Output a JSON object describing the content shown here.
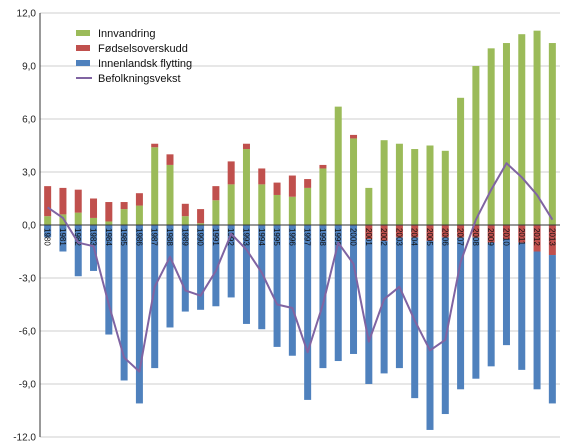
{
  "chart_data": {
    "type": "bar",
    "stacked": true,
    "ylim": [
      -12,
      12
    ],
    "yticks": [
      "12,0",
      "9,0",
      "6,0",
      "3,0",
      "0,0",
      "-3,0",
      "-6,0",
      "-9,0",
      "-12,0"
    ],
    "ytick_values": [
      12,
      9,
      6,
      3,
      0,
      -3,
      -6,
      -9,
      -12
    ],
    "grid": true,
    "legend_position": "top-left",
    "categories": [
      "1980",
      "1981",
      "1982",
      "1983",
      "1984",
      "1985",
      "1986",
      "1987",
      "1988",
      "1989",
      "1990",
      "1991",
      "1992",
      "1993",
      "1994",
      "1995",
      "1996",
      "1997",
      "1998",
      "1999",
      "2000",
      "2001",
      "2002",
      "2003",
      "2004",
      "2005",
      "2006",
      "2007",
      "2008",
      "2009",
      "2010",
      "2011",
      "2012",
      "2013"
    ],
    "series": [
      {
        "name": "Innvandring",
        "kind": "bar",
        "color": "#9bbb59",
        "values": [
          0.5,
          0.6,
          0.7,
          0.4,
          0.2,
          0.9,
          1.1,
          4.4,
          3.4,
          0.5,
          0.1,
          1.4,
          2.3,
          4.3,
          2.3,
          1.7,
          1.6,
          2.1,
          3.2,
          6.7,
          4.9,
          2.1,
          4.8,
          4.6,
          4.3,
          4.5,
          4.2,
          7.2,
          9.0,
          10.0,
          10.3,
          10.8,
          11.0,
          10.3
        ]
      },
      {
        "name": "Fødselsoverskudd",
        "kind": "bar",
        "color": "#c0504d",
        "values": [
          1.7,
          1.5,
          1.3,
          1.1,
          1.1,
          0.4,
          0.7,
          0.2,
          0.6,
          0.7,
          0.8,
          0.8,
          1.3,
          0.3,
          0.9,
          0.7,
          1.2,
          0.5,
          0.2,
          0.0,
          0.2,
          -0.8,
          -0.9,
          -0.7,
          -0.7,
          -0.9,
          -0.7,
          -0.7,
          -0.7,
          -1.0,
          -0.8,
          -1.0,
          -1.5,
          -1.7
        ]
      },
      {
        "name": "Innenlandsk flytting",
        "kind": "bar",
        "color": "#4f81bd",
        "values": [
          -0.7,
          -1.5,
          -2.9,
          -2.6,
          -6.2,
          -8.8,
          -10.1,
          -8.1,
          -5.8,
          -4.9,
          -4.8,
          -4.6,
          -4.1,
          -5.6,
          -5.9,
          -6.9,
          -7.4,
          -9.9,
          -8.1,
          -7.7,
          -7.3,
          -8.2,
          -7.5,
          -7.4,
          -9.1,
          -10.7,
          -10.0,
          -8.6,
          -8.0,
          -7.0,
          -6.0,
          -7.2,
          -7.8,
          -8.4
        ]
      },
      {
        "name": "Befolkningsvekst",
        "kind": "line",
        "color": "#8064a2",
        "values": [
          1.0,
          0.4,
          -1.0,
          -1.2,
          -4.5,
          -7.5,
          -8.3,
          -3.5,
          -1.8,
          -3.7,
          -4.0,
          -2.6,
          -0.5,
          -1.4,
          -2.7,
          -4.5,
          -4.7,
          -7.2,
          -4.5,
          -1.0,
          -2.2,
          -6.6,
          -4.2,
          -3.5,
          -5.4,
          -7.1,
          -6.5,
          -2.1,
          0.3,
          2.0,
          3.5,
          2.7,
          1.7,
          0.3
        ]
      }
    ]
  }
}
